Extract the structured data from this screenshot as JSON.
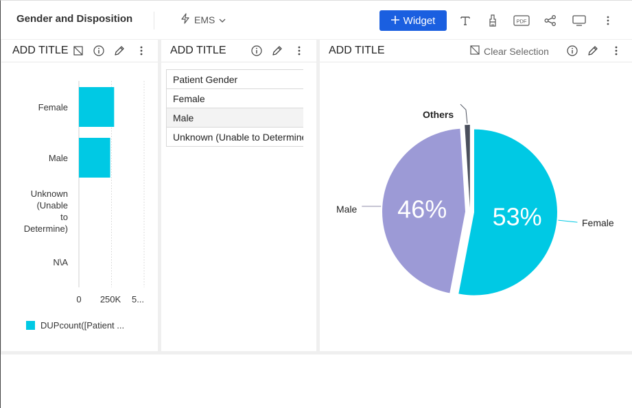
{
  "header": {
    "title": "Gender and Disposition",
    "source": "EMS",
    "widget_label": "Widget",
    "tools": [
      "text-icon",
      "brush-icon",
      "pdf-icon",
      "share-icon",
      "monitor-icon",
      "more-icon"
    ],
    "pdf_text": "PDF"
  },
  "panels": {
    "bar": {
      "title": "ADD TITLE"
    },
    "table": {
      "title": "ADD TITLE"
    },
    "pie": {
      "title": "ADD TITLE",
      "clear_label": "Clear Selection"
    }
  },
  "bar_chart": {
    "categories": [
      "Female",
      "Male",
      "Unknown (Unable to Determine)",
      "N\\A"
    ],
    "category_lines": [
      [
        "Female"
      ],
      [
        "Male"
      ],
      [
        "Unknown",
        "(Unable",
        "to",
        "Determine)"
      ],
      [
        "N\\A"
      ]
    ],
    "ticks": [
      "0",
      "250K",
      "5..."
    ],
    "legend": "DUPcount([Patient ..."
  },
  "table": {
    "header": "Patient Gender",
    "rows": [
      "Female",
      "Male",
      "Unknown (Unable to Determine)"
    ]
  },
  "chart_data": [
    {
      "type": "bar",
      "orientation": "horizontal",
      "categories": [
        "Female",
        "Male",
        "Unknown (Unable to Determine)",
        "N\\A"
      ],
      "series": [
        {
          "name": "DUPcount([Patient ...",
          "values": [
            270000,
            240000,
            0,
            0
          ]
        }
      ],
      "xlim": [
        0,
        500000
      ],
      "xticks": [
        "0",
        "250K",
        "5..."
      ],
      "grid": true,
      "legend": "bottom-left",
      "colors": [
        "#00c9e4"
      ]
    },
    {
      "type": "pie",
      "labels": [
        "Female",
        "Male",
        "Others"
      ],
      "values": [
        53,
        46,
        1
      ],
      "data_labels": [
        "53%",
        "46%",
        ""
      ],
      "colors": [
        "#00c9e4",
        "#9c9ad6",
        "#4a4f5c"
      ]
    }
  ]
}
